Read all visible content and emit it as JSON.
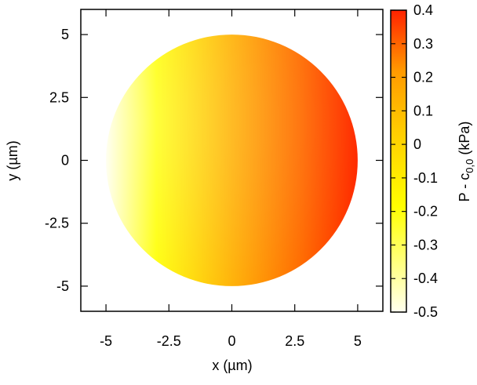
{
  "chart_data": {
    "type": "heatmap",
    "shape": "disk",
    "disk_radius": 5,
    "title": "",
    "xlabel": "x (µm)",
    "ylabel": "y (µm)",
    "xlim": [
      -6,
      6
    ],
    "ylim": [
      -6,
      6
    ],
    "x_ticks": [
      -5,
      -2.5,
      0,
      2.5,
      5
    ],
    "x_tick_labels": [
      "-5",
      "-2.5",
      "0",
      "2.5",
      "5"
    ],
    "y_ticks": [
      -5,
      -2.5,
      0,
      2.5,
      5
    ],
    "y_tick_labels": [
      "-5",
      "-2.5",
      "0",
      "2.5",
      "5"
    ],
    "field": {
      "description_values": [
        {
          "x": -5,
          "y": 0,
          "value": -0.5
        },
        {
          "x": -3,
          "y": 2,
          "value": -0.05
        },
        {
          "x": 0,
          "y": 0,
          "value": 0.15
        },
        {
          "x": 3,
          "y": 0,
          "value": 0.3
        },
        {
          "x": 5,
          "y": 0,
          "value": 0.38
        }
      ]
    },
    "colorbar": {
      "label_main": "P - c",
      "label_sub": "0,0",
      "label_unit": " (kPa)",
      "range": [
        -0.5,
        0.4
      ],
      "ticks": [
        0.4,
        0.3,
        0.2,
        0.1,
        0,
        -0.1,
        -0.2,
        -0.3,
        -0.4,
        -0.5
      ],
      "tick_labels": [
        "0.4",
        "0.3",
        "0.2",
        "0.1",
        "0",
        "-0.1",
        "-0.2",
        "-0.3",
        "-0.4",
        "-0.5"
      ],
      "colors": {
        "low": "#ffffee",
        "mid_low": "#ffff00",
        "mid": "#ffcc00",
        "mid_high": "#ff9900",
        "high": "#ff2200"
      }
    },
    "grid": false,
    "legend": "none"
  }
}
